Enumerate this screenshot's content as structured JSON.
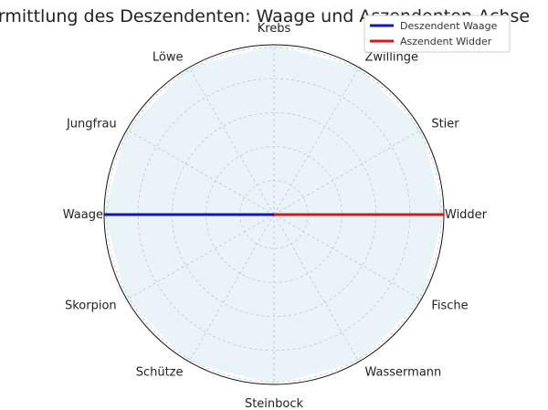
{
  "chart_data": {
    "type": "radar",
    "title": "Ermittlung des Deszendenten: Waage und Aszendenten-Achse",
    "categories": [
      "Widder",
      "Stier",
      "Zwillinge",
      "Krebs",
      "Löwe",
      "Jungfrau",
      "Waage",
      "Skorpion",
      "Schütze",
      "Steinbock",
      "Wassermann",
      "Fische"
    ],
    "area": {
      "value": 1.0,
      "color": "#e8f4f7"
    },
    "rlim": [
      0,
      1
    ],
    "grid": true,
    "series": [
      {
        "name": "Deszendent Waage",
        "from_category": "Waage",
        "value": 1.0,
        "color": "#1414b8"
      },
      {
        "name": "Aszendent Widder",
        "from_category": "Widder",
        "value": 1.0,
        "color": "#d11a1a"
      }
    ],
    "legend": "top-right"
  }
}
